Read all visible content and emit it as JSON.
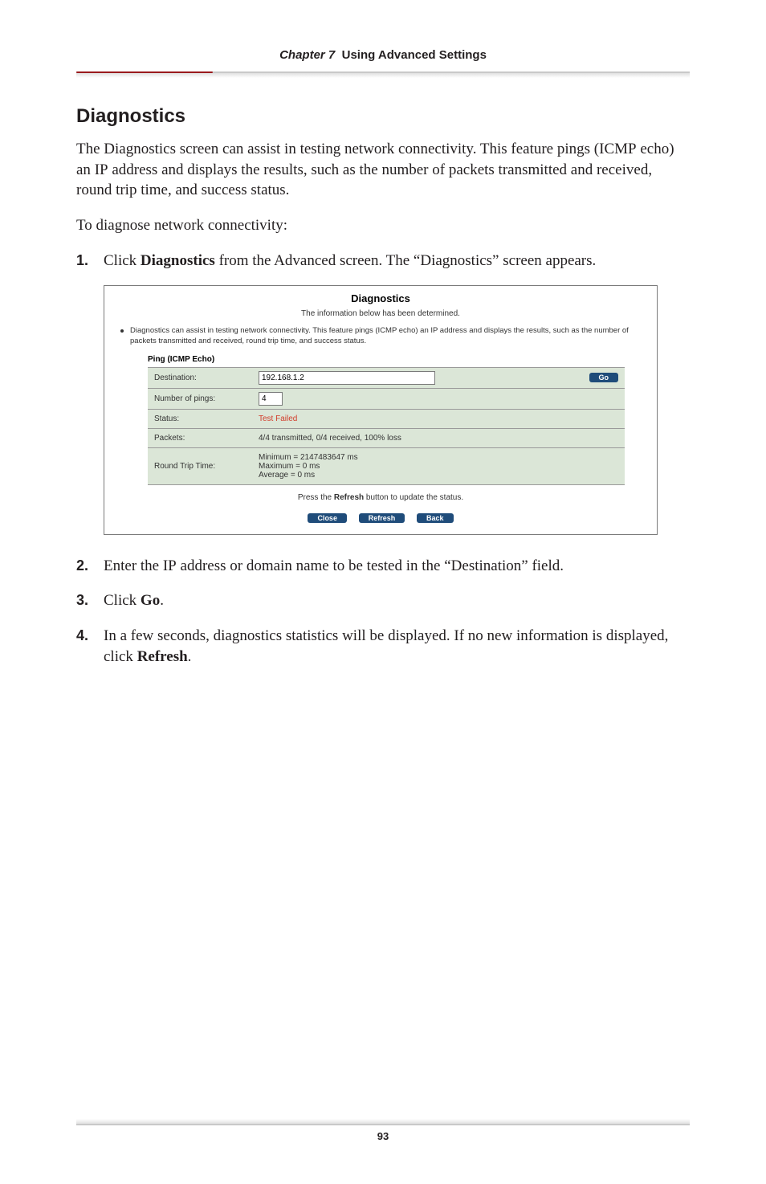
{
  "header": {
    "chapter_label": "Chapter 7",
    "chapter_title": "Using Advanced Settings"
  },
  "section_heading": "Diagnostics",
  "intro_para": "The Diagnostics screen can assist in testing network connectivity. This feature pings (ICMP echo) an IP address and displays the results, such as the number of packets transmitted and received, round trip time, and success status.",
  "lead_line": "To diagnose network connectivity:",
  "steps": {
    "s1": {
      "num": "1.",
      "text_a": "Click ",
      "bold": "Diagnostics",
      "text_b": " from the Advanced screen. The “Diagnostics” screen appears."
    },
    "s2": {
      "num": "2.",
      "text_a": "Enter the ",
      "sc": "IP",
      "text_b": " address or domain name to be tested in the “Destination” field."
    },
    "s3": {
      "num": "3.",
      "text_a": "Click ",
      "bold": "Go",
      "text_b": "."
    },
    "s4": {
      "num": "4.",
      "text_a": "In a few seconds, diagnostics statistics will be displayed. If no new information is displayed, click ",
      "bold": "Refresh",
      "text_b": "."
    }
  },
  "diag": {
    "title": "Diagnostics",
    "subtitle": "The information below has been determined.",
    "bullet": "Diagnostics can assist in testing network connectivity. This feature pings (ICMP echo) an IP address and displays the results, such as the number of packets transmitted and received, round trip time, and success status.",
    "ping_header": "Ping (ICMP Echo)",
    "rows": {
      "dest": {
        "label": "Destination:",
        "value": "192.168.1.2"
      },
      "num": {
        "label": "Number of pings:",
        "value": "4"
      },
      "status": {
        "label": "Status:",
        "value": "Test Failed"
      },
      "packets": {
        "label": "Packets:",
        "value": "4/4 transmitted, 0/4 received, 100% loss"
      },
      "rtt": {
        "label": "Round Trip Time:",
        "l1": "Minimum = 2147483647 ms",
        "l2": "Maximum = 0 ms",
        "l3": "Average = 0 ms"
      }
    },
    "go_label": "Go",
    "refresh_hint_a": "Press the ",
    "refresh_hint_bold": "Refresh",
    "refresh_hint_b": " button to update the status.",
    "buttons": {
      "close": "Close",
      "refresh": "Refresh",
      "back": "Back"
    }
  },
  "footer": {
    "page": "93"
  },
  "colors": {
    "accent": "#9a1b1e",
    "row_bg": "#dbe6d7",
    "pill_bg": "#1f4c7a",
    "fail": "#d23c2a"
  }
}
